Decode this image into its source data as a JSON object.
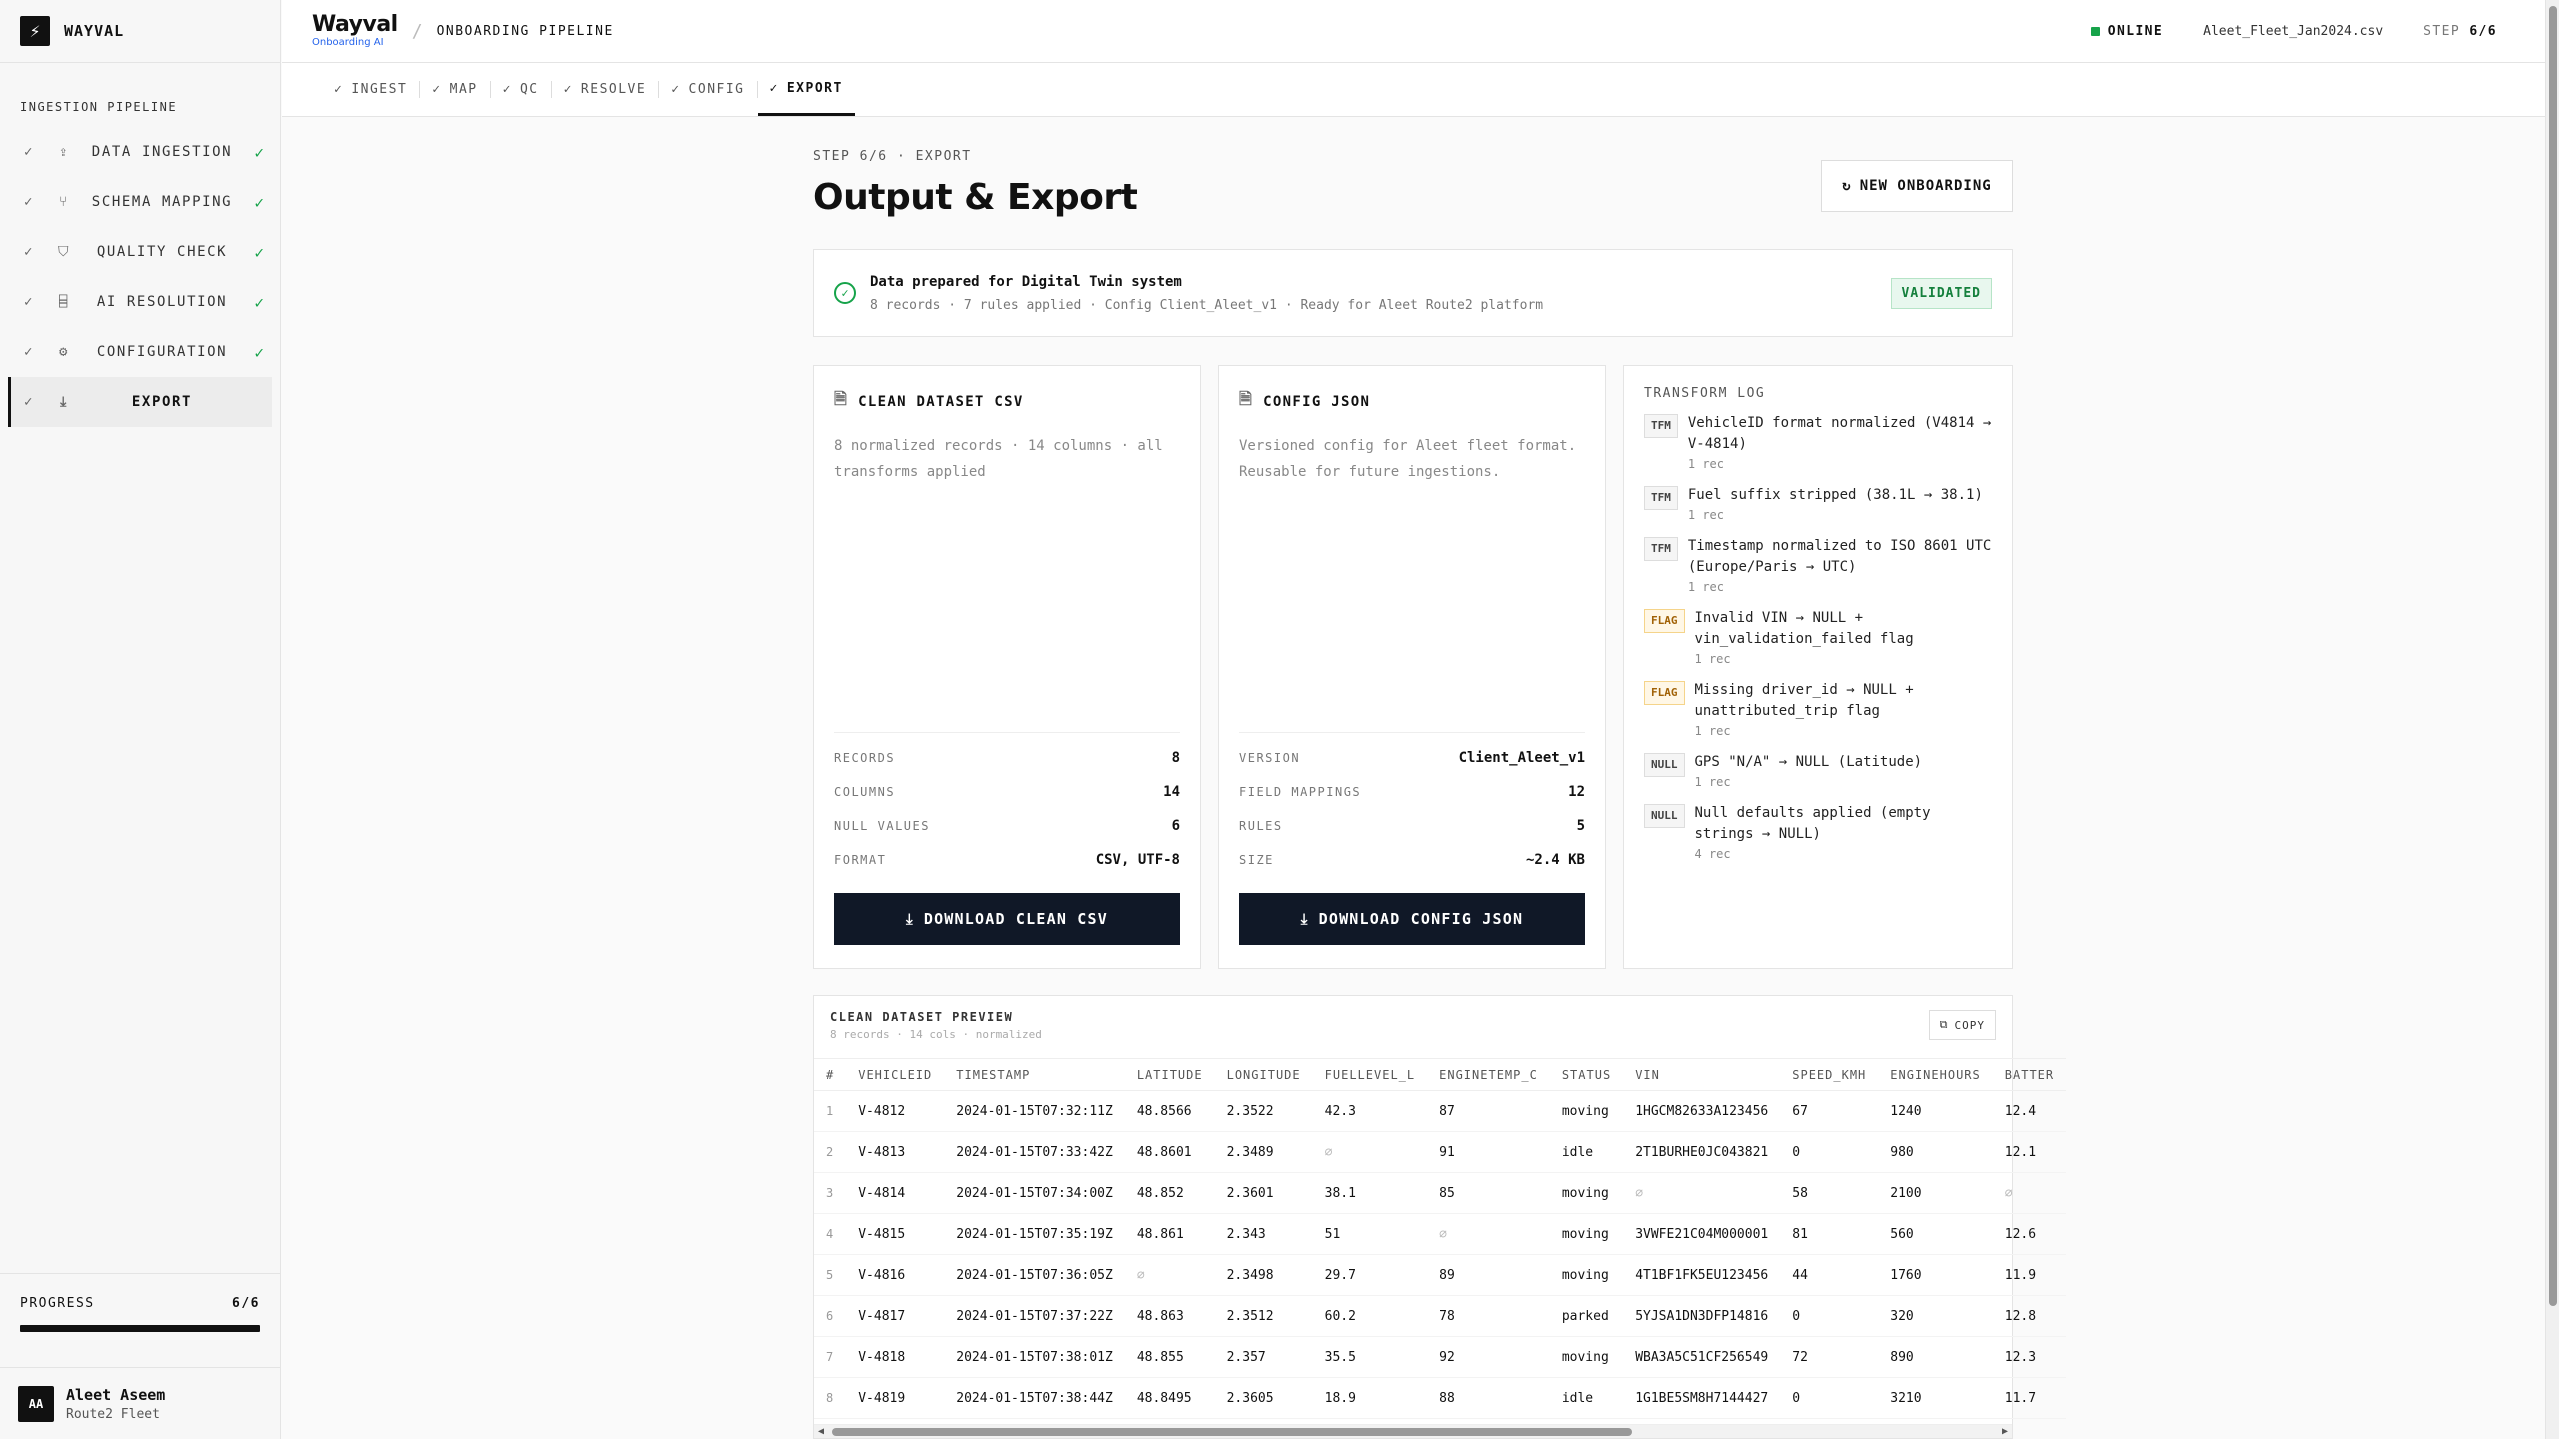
{
  "brand": {
    "name": "WAYVAL",
    "logo_glyph": "⚡"
  },
  "sidebar": {
    "section": "INGESTION PIPELINE",
    "items": [
      {
        "label": "DATA INGESTION",
        "icon": "upload-icon",
        "done": "✓"
      },
      {
        "label": "SCHEMA MAPPING",
        "icon": "git-branch-icon",
        "done": "✓"
      },
      {
        "label": "QUALITY CHECK",
        "icon": "shield-check-icon",
        "done": "✓"
      },
      {
        "label": "AI RESOLUTION",
        "icon": "bot-icon",
        "done": "✓"
      },
      {
        "label": "CONFIGURATION",
        "icon": "gear-icon",
        "done": "✓"
      },
      {
        "label": "EXPORT",
        "icon": "download-icon",
        "done": ""
      }
    ],
    "progress": {
      "label": "PROGRESS",
      "value": "6/6",
      "fraction": 1.0
    },
    "user": {
      "initials": "AA",
      "name": "Aleet Aseem",
      "org": "Route2 Fleet"
    }
  },
  "topbar": {
    "logo": "Wayval",
    "logo_sub": "Onboarding AI",
    "separator": "/",
    "title": "ONBOARDING PIPELINE",
    "status": "ONLINE",
    "status_color": "#16a34a",
    "file": "Aleet_Fleet_Jan2024.csv",
    "step_label": "STEP",
    "step_value": "6/6"
  },
  "tabs": [
    {
      "label": "INGEST",
      "active": false
    },
    {
      "label": "MAP",
      "active": false
    },
    {
      "label": "QC",
      "active": false
    },
    {
      "label": "RESOLVE",
      "active": false
    },
    {
      "label": "CONFIG",
      "active": false
    },
    {
      "label": "EXPORT",
      "active": true
    }
  ],
  "page": {
    "crumb": "STEP 6/6 · EXPORT",
    "title": "Output & Export",
    "new_button": "NEW ONBOARDING"
  },
  "banner": {
    "title": "Data prepared for Digital Twin system",
    "subtitle": "8 records · 7 rules applied · Config Client_Aleet_v1 · Ready for Aleet Route2 platform",
    "badge": "VALIDATED"
  },
  "csv_card": {
    "title": "CLEAN DATASET CSV",
    "description": "8 normalized records · 14 columns · all transforms applied",
    "stats": [
      {
        "k": "RECORDS",
        "v": "8"
      },
      {
        "k": "COLUMNS",
        "v": "14"
      },
      {
        "k": "NULL VALUES",
        "v": "6"
      },
      {
        "k": "FORMAT",
        "v": "CSV, UTF-8"
      }
    ],
    "button": "DOWNLOAD CLEAN CSV"
  },
  "json_card": {
    "title": "CONFIG JSON",
    "description": "Versioned config for Aleet fleet format. Reusable for future ingestions.",
    "stats": [
      {
        "k": "VERSION",
        "v": "Client_Aleet_v1"
      },
      {
        "k": "FIELD MAPPINGS",
        "v": "12"
      },
      {
        "k": "RULES",
        "v": "5"
      },
      {
        "k": "SIZE",
        "v": "~2.4 KB"
      }
    ],
    "button": "DOWNLOAD CONFIG JSON"
  },
  "transform_log": {
    "title": "TRANSFORM LOG",
    "entries": [
      {
        "tag": "TFM",
        "text": "VehicleID format normalized (V4814 → V-4814)",
        "count": "1 rec"
      },
      {
        "tag": "TFM",
        "text": "Fuel suffix stripped (38.1L → 38.1)",
        "count": "1 rec"
      },
      {
        "tag": "TFM",
        "text": "Timestamp normalized to ISO 8601 UTC (Europe/Paris → UTC)",
        "count": "1 rec"
      },
      {
        "tag": "FLAG",
        "text": "Invalid VIN → NULL + vin_validation_failed flag",
        "count": "1 rec"
      },
      {
        "tag": "FLAG",
        "text": "Missing driver_id → NULL + unattributed_trip flag",
        "count": "1 rec"
      },
      {
        "tag": "NULL",
        "text": "GPS \"N/A\" → NULL (Latitude)",
        "count": "1 rec"
      },
      {
        "tag": "NULL",
        "text": "Null defaults applied (empty strings → NULL)",
        "count": "4 rec"
      }
    ]
  },
  "preview": {
    "title": "CLEAN DATASET PREVIEW",
    "subtitle": "8 records · 14 cols · normalized",
    "copy": "COPY",
    "columns": [
      "#",
      "VEHICLEID",
      "TIMESTAMP",
      "LATITUDE",
      "LONGITUDE",
      "FUELLEVEL_L",
      "ENGINETEMP_C",
      "STATUS",
      "VIN",
      "SPEED_KMH",
      "ENGINEHOURS",
      "BATTER"
    ],
    "rows": [
      [
        "1",
        "V-4812",
        "2024-01-15T07:32:11Z",
        "48.8566",
        "2.3522",
        "42.3",
        "87",
        "moving",
        "1HGCM82633A123456",
        "67",
        "1240",
        "12.4"
      ],
      [
        "2",
        "V-4813",
        "2024-01-15T07:33:42Z",
        "48.8601",
        "2.3489",
        "∅",
        "91",
        "idle",
        "2T1BURHE0JC043821",
        "0",
        "980",
        "12.1"
      ],
      [
        "3",
        "V-4814",
        "2024-01-15T07:34:00Z",
        "48.852",
        "2.3601",
        "38.1",
        "85",
        "moving",
        "∅",
        "58",
        "2100",
        "∅"
      ],
      [
        "4",
        "V-4815",
        "2024-01-15T07:35:19Z",
        "48.861",
        "2.343",
        "51",
        "∅",
        "moving",
        "3VWFE21C04M000001",
        "81",
        "560",
        "12.6"
      ],
      [
        "5",
        "V-4816",
        "2024-01-15T07:36:05Z",
        "∅",
        "2.3498",
        "29.7",
        "89",
        "moving",
        "4T1BF1FK5EU123456",
        "44",
        "1760",
        "11.9"
      ],
      [
        "6",
        "V-4817",
        "2024-01-15T07:37:22Z",
        "48.863",
        "2.3512",
        "60.2",
        "78",
        "parked",
        "5YJSA1DN3DFP14816",
        "0",
        "320",
        "12.8"
      ],
      [
        "7",
        "V-4818",
        "2024-01-15T07:38:01Z",
        "48.855",
        "2.357",
        "35.5",
        "92",
        "moving",
        "WBA3A5C51CF256549",
        "72",
        "890",
        "12.3"
      ],
      [
        "8",
        "V-4819",
        "2024-01-15T07:38:44Z",
        "48.8495",
        "2.3605",
        "18.9",
        "88",
        "idle",
        "1G1BE5SM8H7144427",
        "0",
        "3210",
        "11.7"
      ]
    ]
  }
}
